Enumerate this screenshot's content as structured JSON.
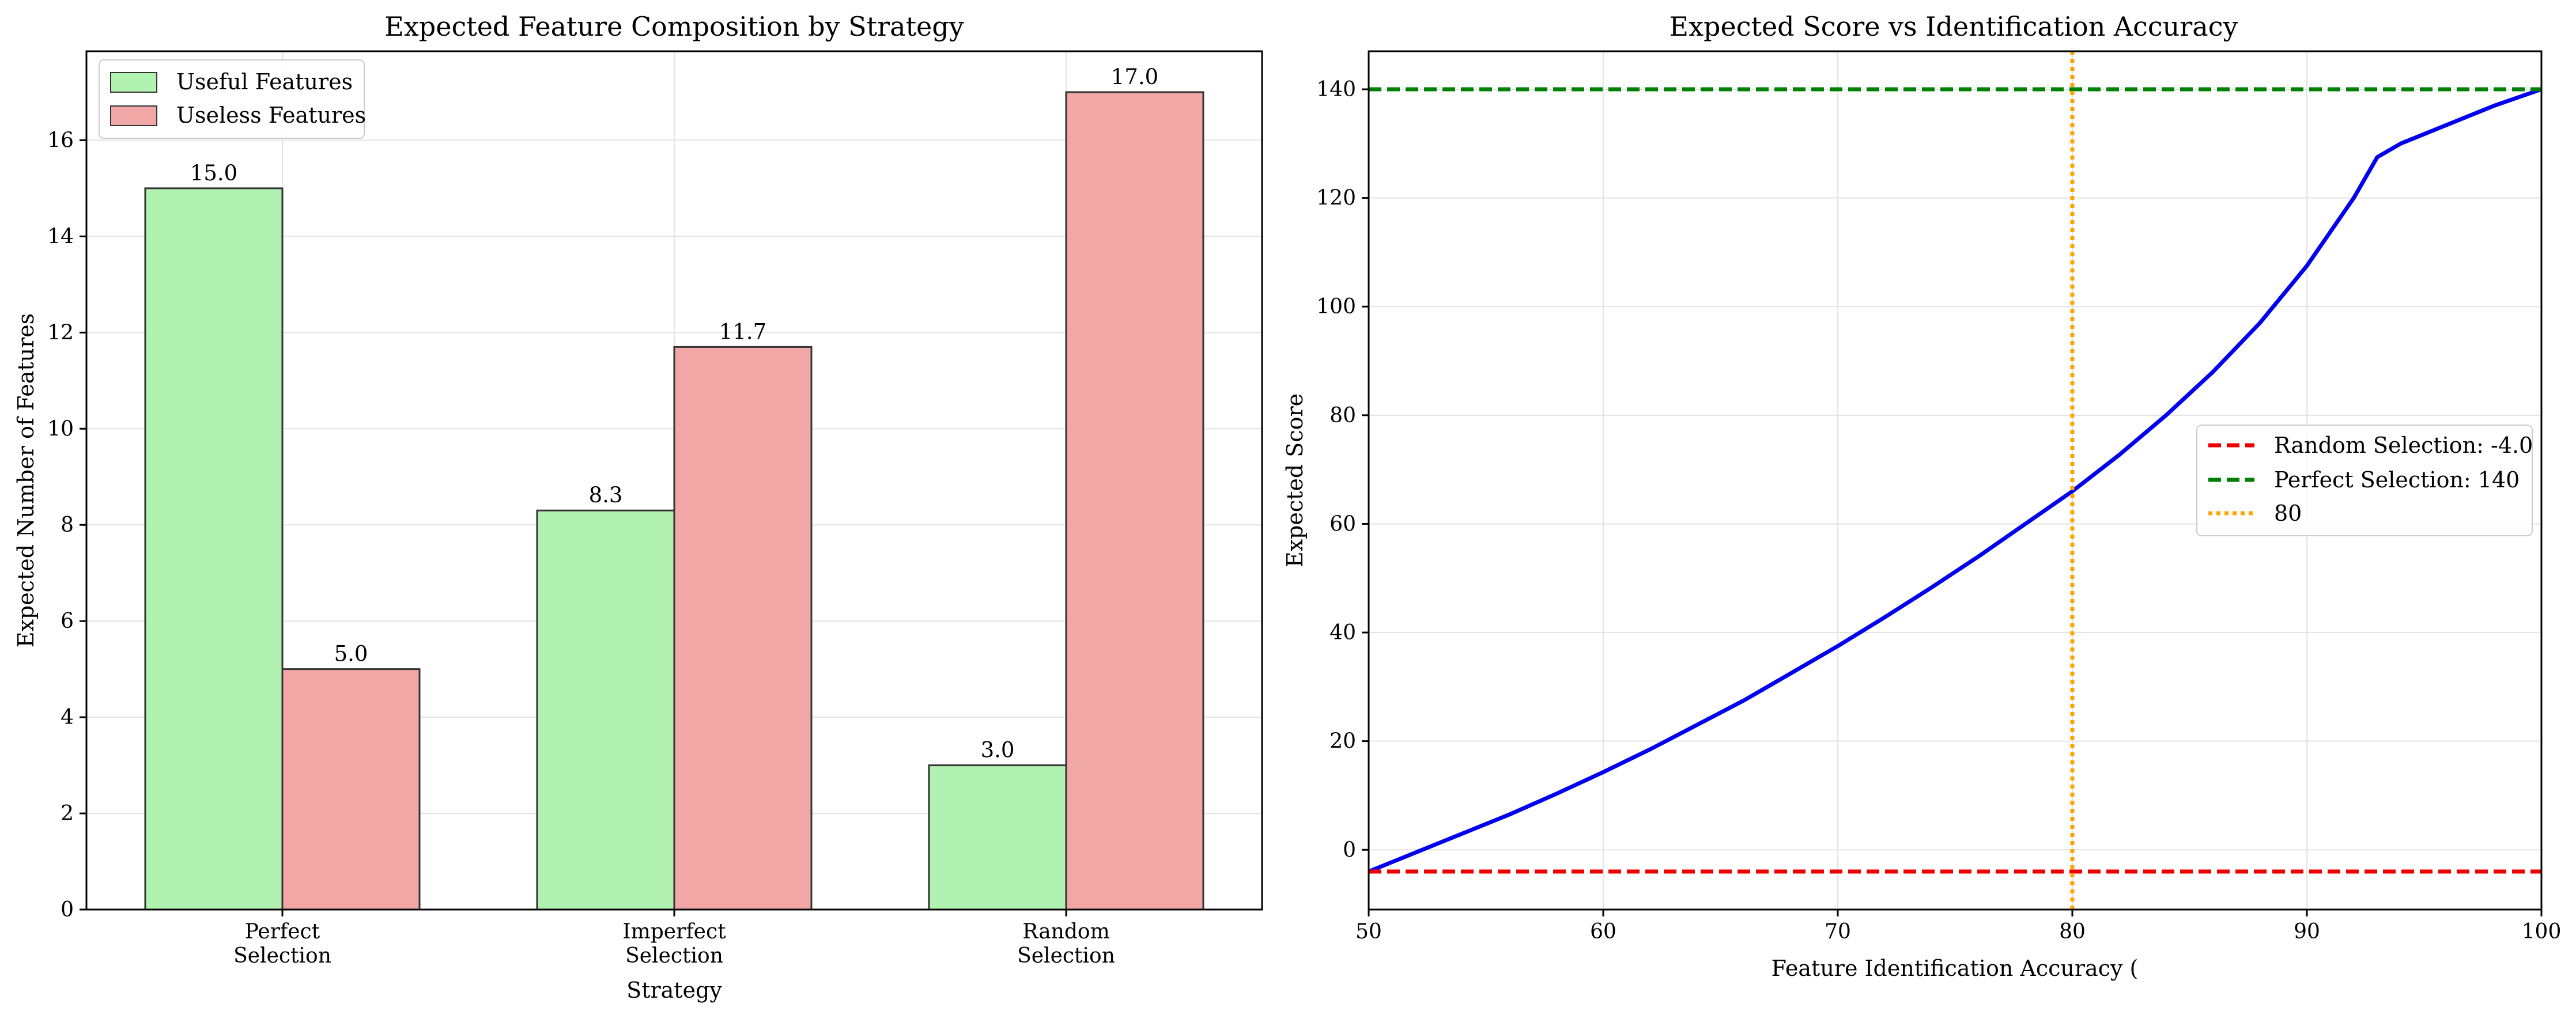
{
  "chart_data": [
    {
      "type": "bar",
      "title": "Expected Feature Composition by Strategy",
      "xlabel": "Strategy",
      "ylabel": "Expected Number of Features",
      "categories": [
        [
          "Perfect",
          "Selection"
        ],
        [
          "Imperfect",
          "Selection"
        ],
        [
          "Random",
          "Selection"
        ]
      ],
      "ylim": [
        0,
        17.85
      ],
      "yticks": [
        0,
        2,
        4,
        6,
        8,
        10,
        12,
        14,
        16
      ],
      "grid": true,
      "legend_position": "top-left",
      "series": [
        {
          "name": "Useful Features",
          "values": [
            15.0,
            8.3,
            3.0
          ],
          "labels": [
            "15.0",
            "8.3",
            "3.0"
          ],
          "color": "#b2f2b0"
        },
        {
          "name": "Useless Features",
          "values": [
            5.0,
            11.7,
            17.0
          ],
          "labels": [
            "5.0",
            "11.7",
            "17.0"
          ],
          "color": "#f2a7a7"
        }
      ]
    },
    {
      "type": "line",
      "title": "Expected Score vs Identification Accuracy",
      "xlabel": "Feature Identification Accuracy (",
      "ylabel": "Expected Score",
      "xlim": [
        50,
        100
      ],
      "ylim": [
        -11,
        147
      ],
      "xticks": [
        50,
        60,
        70,
        80,
        90,
        100
      ],
      "yticks": [
        0,
        20,
        40,
        60,
        80,
        100,
        120,
        140
      ],
      "grid": true,
      "legend_position": "center-right",
      "series": [
        {
          "name": "",
          "color": "#0000ee",
          "style": "solid",
          "x": [
            50,
            52,
            54,
            56,
            58,
            60,
            62,
            64,
            66,
            68,
            70,
            72,
            74,
            76,
            78,
            80,
            82,
            84,
            86,
            88,
            90,
            92,
            93,
            94,
            96,
            98,
            100
          ],
          "y": [
            -4,
            -0.5,
            3,
            6.5,
            10.3,
            14.3,
            18.5,
            23,
            27.5,
            32.5,
            37.5,
            42.8,
            48.3,
            54,
            60,
            66,
            72.7,
            80,
            88,
            97,
            107.5,
            120,
            127.5,
            130,
            133.5,
            137,
            140
          ]
        },
        {
          "name": "Random Selection: -4.0",
          "color": "#ee0000",
          "style": "dashed",
          "x": [
            50,
            100
          ],
          "y": [
            -4,
            -4
          ]
        },
        {
          "name": "Perfect Selection: 140",
          "color": "#008000",
          "style": "dashed",
          "x": [
            50,
            100
          ],
          "y": [
            140,
            140
          ]
        },
        {
          "name": "80",
          "color": "#ffa500",
          "style": "dotted",
          "orientation": "vertical",
          "x": [
            80,
            80
          ],
          "y": [
            -11,
            147
          ]
        }
      ]
    }
  ]
}
